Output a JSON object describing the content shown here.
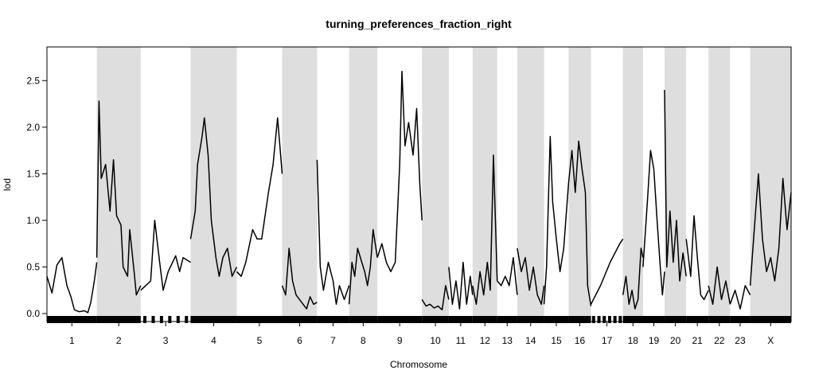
{
  "chart_data": {
    "type": "line",
    "title": "turning_preferences_fraction_right",
    "xlabel": "Chromosome",
    "ylabel": "lod",
    "ylim": [
      0,
      2.75
    ],
    "yticks": [
      0,
      0.5,
      1,
      1.5,
      2,
      2.5
    ],
    "ytick_labels": [
      "0.0",
      "0.5",
      "1.0",
      "1.5",
      "2.0",
      "2.5"
    ],
    "grid": false,
    "alternate_shading": true,
    "shade_color": "#dedede",
    "line_color": "#000000",
    "chromosomes": [
      {
        "label": "1",
        "span": [
          0.0,
          0.067
        ],
        "points": [
          [
            0,
            0.4
          ],
          [
            0.1,
            0.22
          ],
          [
            0.2,
            0.52
          ],
          [
            0.3,
            0.6
          ],
          [
            0.4,
            0.3
          ],
          [
            0.48,
            0.18
          ],
          [
            0.55,
            0.04
          ],
          [
            0.65,
            0.02
          ],
          [
            0.75,
            0.03
          ],
          [
            0.82,
            0.01
          ],
          [
            0.88,
            0.12
          ],
          [
            0.95,
            0.35
          ],
          [
            1,
            0.55
          ]
        ]
      },
      {
        "label": "2",
        "span": [
          0.067,
          0.126
        ],
        "points": [
          [
            0,
            0.6
          ],
          [
            0.05,
            2.28
          ],
          [
            0.1,
            1.45
          ],
          [
            0.2,
            1.6
          ],
          [
            0.3,
            1.1
          ],
          [
            0.38,
            1.65
          ],
          [
            0.45,
            1.05
          ],
          [
            0.55,
            0.95
          ],
          [
            0.6,
            0.5
          ],
          [
            0.7,
            0.4
          ],
          [
            0.75,
            0.9
          ],
          [
            0.85,
            0.45
          ],
          [
            0.9,
            0.2
          ],
          [
            1,
            0.3
          ]
        ]
      },
      {
        "label": "3",
        "span": [
          0.126,
          0.193
        ],
        "points": [
          [
            0,
            0.25
          ],
          [
            0.1,
            0.3
          ],
          [
            0.2,
            0.35
          ],
          [
            0.28,
            1.0
          ],
          [
            0.38,
            0.55
          ],
          [
            0.45,
            0.25
          ],
          [
            0.55,
            0.45
          ],
          [
            0.7,
            0.62
          ],
          [
            0.78,
            0.45
          ],
          [
            0.85,
            0.6
          ],
          [
            1,
            0.55
          ]
        ]
      },
      {
        "label": "4",
        "span": [
          0.193,
          0.255
        ],
        "points": [
          [
            0,
            0.8
          ],
          [
            0.1,
            1.1
          ],
          [
            0.15,
            1.6
          ],
          [
            0.25,
            1.9
          ],
          [
            0.3,
            2.1
          ],
          [
            0.38,
            1.7
          ],
          [
            0.45,
            1.0
          ],
          [
            0.55,
            0.6
          ],
          [
            0.62,
            0.4
          ],
          [
            0.7,
            0.6
          ],
          [
            0.8,
            0.7
          ],
          [
            0.9,
            0.4
          ],
          [
            1,
            0.5
          ]
        ]
      },
      {
        "label": "5",
        "span": [
          0.255,
          0.316
        ],
        "points": [
          [
            0,
            0.45
          ],
          [
            0.1,
            0.4
          ],
          [
            0.2,
            0.55
          ],
          [
            0.35,
            0.9
          ],
          [
            0.45,
            0.8
          ],
          [
            0.55,
            0.8
          ],
          [
            0.7,
            1.3
          ],
          [
            0.8,
            1.6
          ],
          [
            0.9,
            2.1
          ],
          [
            1,
            1.5
          ]
        ]
      },
      {
        "label": "6",
        "span": [
          0.316,
          0.363
        ],
        "points": [
          [
            0,
            0.3
          ],
          [
            0.1,
            0.2
          ],
          [
            0.2,
            0.7
          ],
          [
            0.3,
            0.35
          ],
          [
            0.4,
            0.2
          ],
          [
            0.5,
            0.15
          ],
          [
            0.6,
            0.1
          ],
          [
            0.7,
            0.05
          ],
          [
            0.8,
            0.18
          ],
          [
            0.9,
            0.1
          ],
          [
            1,
            0.12
          ]
        ]
      },
      {
        "label": "7",
        "span": [
          0.363,
          0.406
        ],
        "points": [
          [
            0,
            1.65
          ],
          [
            0.1,
            0.5
          ],
          [
            0.2,
            0.25
          ],
          [
            0.35,
            0.55
          ],
          [
            0.5,
            0.35
          ],
          [
            0.6,
            0.1
          ],
          [
            0.7,
            0.3
          ],
          [
            0.85,
            0.15
          ],
          [
            1,
            0.3
          ]
        ]
      },
      {
        "label": "8",
        "span": [
          0.406,
          0.444
        ],
        "points": [
          [
            0,
            0.1
          ],
          [
            0.1,
            0.55
          ],
          [
            0.2,
            0.4
          ],
          [
            0.3,
            0.7
          ],
          [
            0.45,
            0.55
          ],
          [
            0.55,
            0.45
          ],
          [
            0.65,
            0.3
          ],
          [
            0.75,
            0.5
          ],
          [
            0.85,
            0.9
          ],
          [
            1,
            0.6
          ]
        ]
      },
      {
        "label": "9",
        "span": [
          0.444,
          0.504
        ],
        "points": [
          [
            0,
            0.6
          ],
          [
            0.1,
            0.75
          ],
          [
            0.2,
            0.55
          ],
          [
            0.3,
            0.45
          ],
          [
            0.4,
            0.55
          ],
          [
            0.5,
            1.6
          ],
          [
            0.55,
            2.6
          ],
          [
            0.62,
            1.8
          ],
          [
            0.7,
            2.05
          ],
          [
            0.8,
            1.7
          ],
          [
            0.88,
            2.2
          ],
          [
            0.95,
            1.4
          ],
          [
            1,
            1.0
          ]
        ]
      },
      {
        "label": "10",
        "span": [
          0.504,
          0.54
        ],
        "points": [
          [
            0,
            0.15
          ],
          [
            0.15,
            0.08
          ],
          [
            0.3,
            0.1
          ],
          [
            0.45,
            0.06
          ],
          [
            0.6,
            0.08
          ],
          [
            0.75,
            0.04
          ],
          [
            0.88,
            0.3
          ],
          [
            1,
            0.15
          ]
        ]
      },
      {
        "label": "11",
        "span": [
          0.54,
          0.572
        ],
        "points": [
          [
            0,
            0.5
          ],
          [
            0.15,
            0.1
          ],
          [
            0.3,
            0.35
          ],
          [
            0.45,
            0.05
          ],
          [
            0.6,
            0.55
          ],
          [
            0.75,
            0.1
          ],
          [
            0.9,
            0.4
          ],
          [
            1,
            0.2
          ]
        ]
      },
      {
        "label": "12",
        "span": [
          0.572,
          0.605
        ],
        "points": [
          [
            0,
            0.3
          ],
          [
            0.15,
            0.1
          ],
          [
            0.3,
            0.45
          ],
          [
            0.45,
            0.2
          ],
          [
            0.6,
            0.55
          ],
          [
            0.72,
            0.25
          ],
          [
            0.85,
            1.7
          ],
          [
            1,
            0.35
          ]
        ]
      },
      {
        "label": "13",
        "span": [
          0.605,
          0.632
        ],
        "points": [
          [
            0,
            0.35
          ],
          [
            0.2,
            0.3
          ],
          [
            0.4,
            0.4
          ],
          [
            0.6,
            0.3
          ],
          [
            0.8,
            0.6
          ],
          [
            1,
            0.2
          ]
        ]
      },
      {
        "label": "14",
        "span": [
          0.632,
          0.668
        ],
        "points": [
          [
            0,
            0.7
          ],
          [
            0.15,
            0.45
          ],
          [
            0.3,
            0.6
          ],
          [
            0.45,
            0.25
          ],
          [
            0.6,
            0.5
          ],
          [
            0.75,
            0.2
          ],
          [
            0.9,
            0.1
          ],
          [
            1,
            0.3
          ]
        ]
      },
      {
        "label": "15",
        "span": [
          0.668,
          0.701
        ],
        "points": [
          [
            0,
            0.1
          ],
          [
            0.1,
            0.5
          ],
          [
            0.25,
            1.9
          ],
          [
            0.35,
            1.2
          ],
          [
            0.5,
            0.8
          ],
          [
            0.65,
            0.45
          ],
          [
            0.8,
            0.7
          ],
          [
            0.9,
            1.05
          ],
          [
            1,
            1.4
          ]
        ]
      },
      {
        "label": "16",
        "span": [
          0.701,
          0.731
        ],
        "points": [
          [
            0,
            1.4
          ],
          [
            0.15,
            1.75
          ],
          [
            0.3,
            1.3
          ],
          [
            0.45,
            1.85
          ],
          [
            0.6,
            1.55
          ],
          [
            0.75,
            1.3
          ],
          [
            0.85,
            0.3
          ],
          [
            1,
            0.08
          ]
        ]
      },
      {
        "label": "17",
        "span": [
          0.731,
          0.774
        ],
        "points": [
          [
            0,
            0.1
          ],
          [
            0.3,
            0.3
          ],
          [
            0.6,
            0.55
          ],
          [
            0.9,
            0.75
          ],
          [
            1,
            0.8
          ]
        ]
      },
      {
        "label": "18",
        "span": [
          0.774,
          0.801
        ],
        "points": [
          [
            0,
            0.2
          ],
          [
            0.15,
            0.4
          ],
          [
            0.3,
            0.1
          ],
          [
            0.45,
            0.25
          ],
          [
            0.6,
            0.05
          ],
          [
            0.75,
            0.15
          ],
          [
            0.9,
            0.7
          ],
          [
            1,
            0.6
          ]
        ]
      },
      {
        "label": "19",
        "span": [
          0.801,
          0.83
        ],
        "points": [
          [
            0,
            0.5
          ],
          [
            0.2,
            1.2
          ],
          [
            0.35,
            1.75
          ],
          [
            0.5,
            1.55
          ],
          [
            0.65,
            1.0
          ],
          [
            0.8,
            0.5
          ],
          [
            0.9,
            0.2
          ],
          [
            1,
            0.45
          ]
        ]
      },
      {
        "label": "20",
        "span": [
          0.83,
          0.859
        ],
        "points": [
          [
            0,
            2.4
          ],
          [
            0.1,
            0.5
          ],
          [
            0.25,
            1.1
          ],
          [
            0.4,
            0.55
          ],
          [
            0.55,
            1.0
          ],
          [
            0.7,
            0.35
          ],
          [
            0.85,
            0.65
          ],
          [
            1,
            0.4
          ]
        ]
      },
      {
        "label": "21",
        "span": [
          0.859,
          0.889
        ],
        "points": [
          [
            0,
            0.8
          ],
          [
            0.2,
            0.4
          ],
          [
            0.35,
            1.05
          ],
          [
            0.5,
            0.6
          ],
          [
            0.65,
            0.2
          ],
          [
            0.8,
            0.15
          ],
          [
            1,
            0.25
          ]
        ]
      },
      {
        "label": "22",
        "span": [
          0.889,
          0.918
        ],
        "points": [
          [
            0,
            0.3
          ],
          [
            0.2,
            0.1
          ],
          [
            0.4,
            0.5
          ],
          [
            0.6,
            0.15
          ],
          [
            0.8,
            0.35
          ],
          [
            1,
            0.1
          ]
        ]
      },
      {
        "label": "23",
        "span": [
          0.918,
          0.945
        ],
        "points": [
          [
            0,
            0.1
          ],
          [
            0.25,
            0.25
          ],
          [
            0.5,
            0.05
          ],
          [
            0.75,
            0.3
          ],
          [
            1,
            0.2
          ]
        ]
      },
      {
        "label": "X",
        "span": [
          0.945,
          1.0
        ],
        "points": [
          [
            0,
            0.3
          ],
          [
            0.1,
            0.9
          ],
          [
            0.2,
            1.5
          ],
          [
            0.3,
            0.8
          ],
          [
            0.4,
            0.45
          ],
          [
            0.5,
            0.6
          ],
          [
            0.6,
            0.35
          ],
          [
            0.7,
            0.7
          ],
          [
            0.8,
            1.45
          ],
          [
            0.9,
            0.9
          ],
          [
            1,
            1.3
          ]
        ]
      }
    ]
  }
}
